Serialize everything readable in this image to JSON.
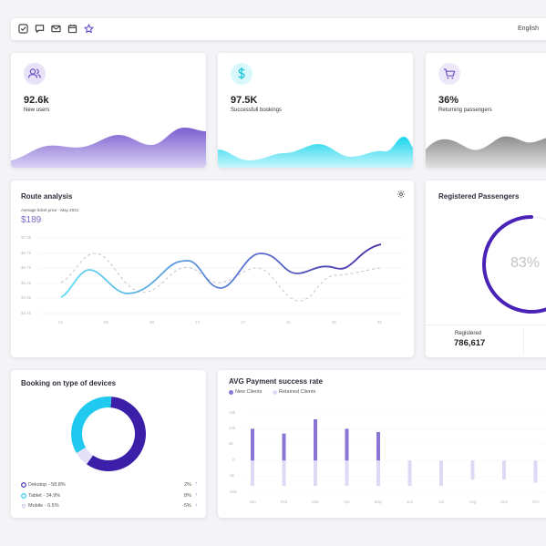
{
  "topbar": {
    "icons": [
      "check-square-icon",
      "chat-icon",
      "mail-icon",
      "calendar-icon",
      "star-icon"
    ],
    "language": "English"
  },
  "stats": [
    {
      "value": "92.6k",
      "label": "New users",
      "icon": "users-icon",
      "color": "#7c5fd0"
    },
    {
      "value": "97.5K",
      "label": "Successfull bookings",
      "icon": "dollar-icon",
      "color": "#2fd7ea"
    },
    {
      "value": "36%",
      "label": "Returning passengers",
      "icon": "cart-icon",
      "color": "#8f8f8f"
    }
  ],
  "route": {
    "title": "Route analysis",
    "subtitle": "Average ticket price - May 2021",
    "price": "$189",
    "y_ticks": [
      "$7.0k",
      "$6.7k",
      "$5.7k",
      "$5.2k",
      "$4.9k",
      "$4.4k"
    ],
    "x_ticks": [
      "01",
      "05",
      "09",
      "13",
      "17",
      "21",
      "25",
      "31"
    ]
  },
  "registered": {
    "title": "Registered Passengers",
    "percent": "83%",
    "percent_value": 0.83,
    "stat_label": "Registered",
    "stat_value": "786,617"
  },
  "devices": {
    "title": "Booking on type of devices",
    "legend": [
      {
        "label": "Dekstop - 58.8%",
        "change": "2%",
        "arrow": "↑",
        "color": "#3b1fa8"
      },
      {
        "label": "Tablet - 34.9%",
        "change": "8%",
        "arrow": "↑",
        "color": "#20c9ef"
      },
      {
        "label": "Mobile - 6.5%",
        "change": "-5%",
        "arrow": "↓",
        "color": "#e3e0f7"
      }
    ],
    "chart_data": {
      "type": "pie",
      "categories": [
        "Dekstop",
        "Tablet",
        "Mobile"
      ],
      "values": [
        58.8,
        34.9,
        6.5
      ]
    }
  },
  "payment": {
    "title": "AVG Payment success rate",
    "legend": [
      {
        "label": "New Clients",
        "color": "#8a74d6"
      },
      {
        "label": "Retained Clients",
        "color": "#dedaf6"
      }
    ],
    "y_ticks": [
      "15k",
      "10k",
      "5k",
      "0",
      "-5k",
      "-10k"
    ],
    "chart_data": {
      "type": "bar",
      "categories": [
        "Jan",
        "Feb",
        "Mar",
        "Apr",
        "May",
        "Jun",
        "Jul",
        "Aug",
        "Sep",
        "Oct"
      ],
      "series": [
        {
          "name": "New Clients",
          "values": [
            10,
            8.5,
            13,
            10,
            9,
            0,
            0,
            0,
            0,
            0
          ]
        },
        {
          "name": "Retained Clients",
          "values": [
            -8,
            -8,
            -8,
            -8,
            -8,
            -8,
            -8,
            -6,
            -6,
            -7
          ]
        }
      ],
      "ylim": [
        -10,
        15
      ]
    }
  }
}
